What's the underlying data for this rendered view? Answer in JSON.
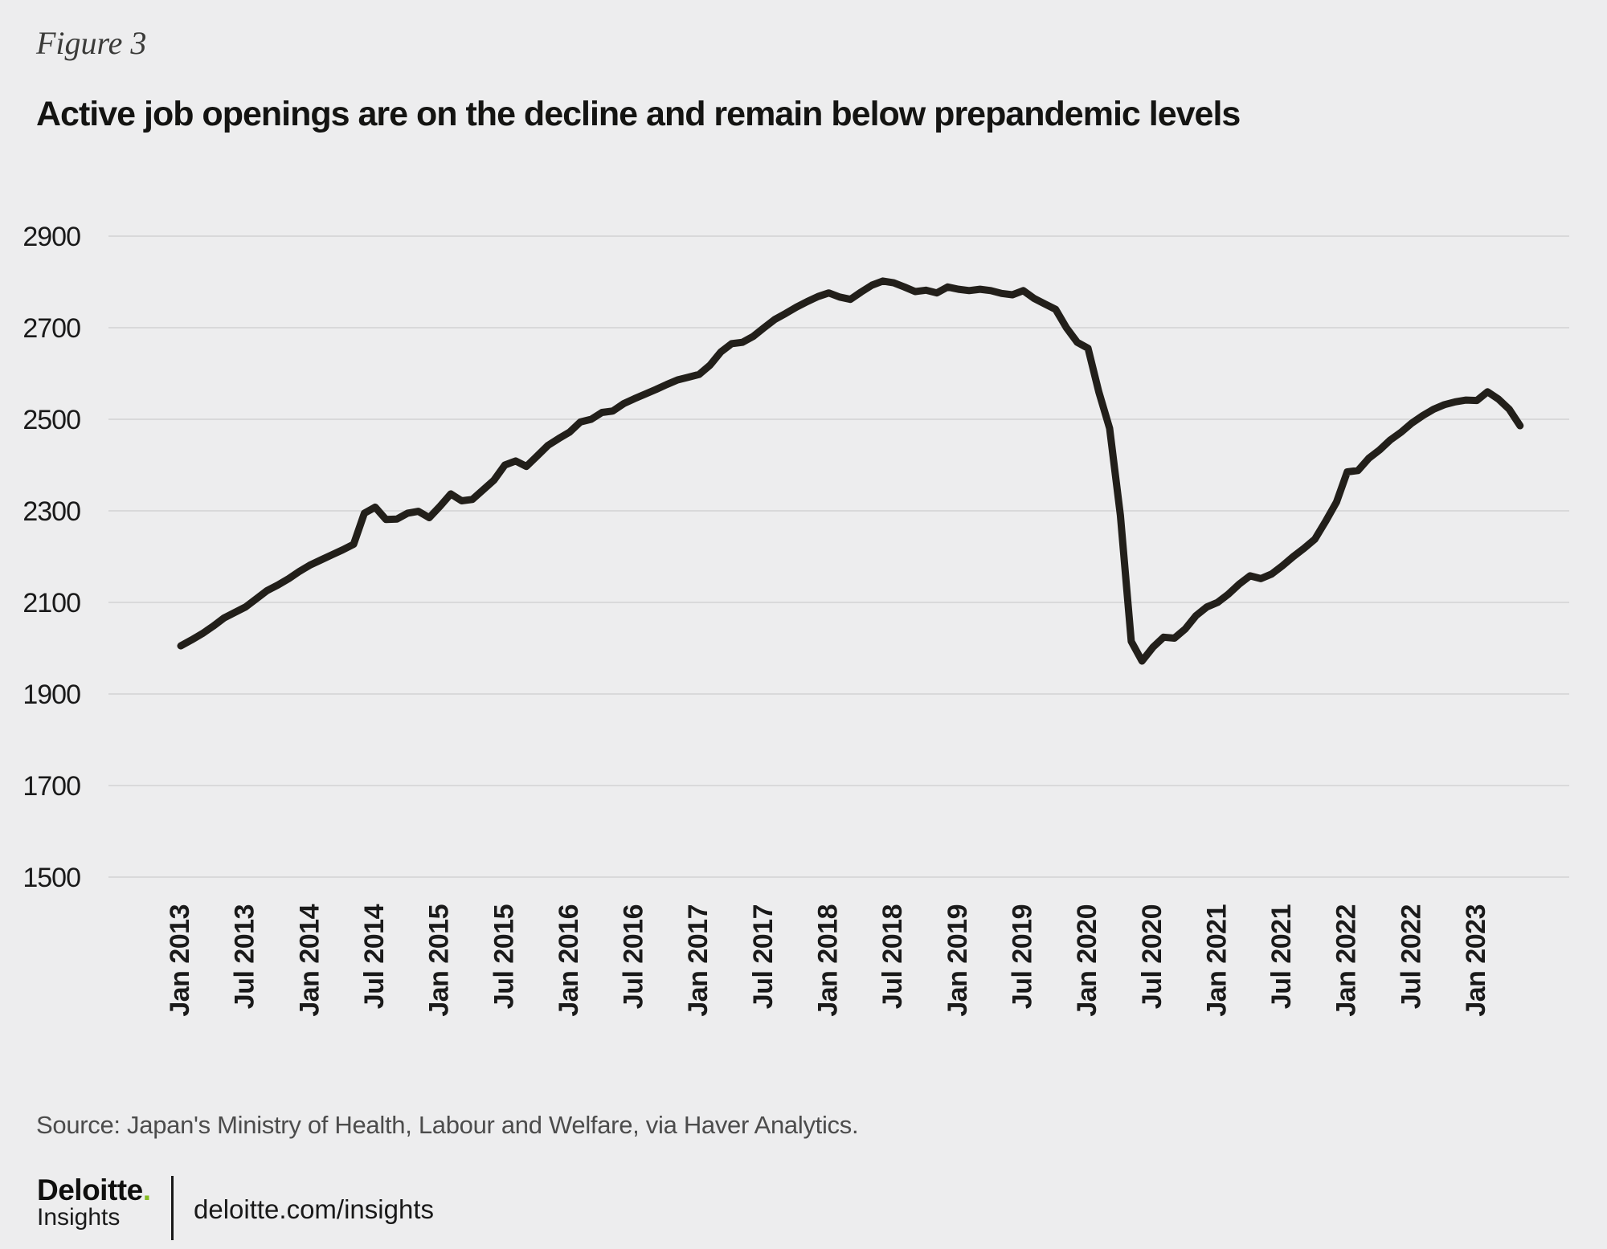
{
  "figure_label": "Figure 3",
  "title": "Active job openings are on the decline and remain below prepandemic levels",
  "source": "Source: Japan's Ministry of Health, Labour and Welfare, via Haver Analytics.",
  "footer": {
    "brand": "Deloitte",
    "brand_dot": ".",
    "brand_sub": "Insights",
    "url": "deloitte.com/insights"
  },
  "colors": {
    "background": "#EDEDEE",
    "line": "#221F1A",
    "gridline": "#D9D9DA",
    "text": "#1A1A1A",
    "accent_green": "#86BC25"
  },
  "chart_data": {
    "type": "line",
    "title": "Active job openings are on the decline and remain below prepandemic levels",
    "xlabel": "",
    "ylabel": "",
    "ylim": [
      1500,
      2900
    ],
    "grid": "horizontal",
    "legend": "none",
    "y_ticks": [
      2900,
      2700,
      2500,
      2300,
      2100,
      1900,
      1700,
      1500
    ],
    "x_tick_labels": [
      "Jan 2013",
      "Jul 2013",
      "Jan 2014",
      "Jul 2014",
      "Jan 2015",
      "Jul 2015",
      "Jan 2016",
      "Jul 2016",
      "Jan 2017",
      "Jul 2017",
      "Jan 2018",
      "Jul 2018",
      "Jan 2019",
      "Jul 2019",
      "Jan 2020",
      "Jul 2020",
      "Jan 2021",
      "Jul 2021",
      "Jan 2022",
      "Jul 2022",
      "Jan 2023"
    ],
    "x_tick_interval_months": 6,
    "x_frequency": "monthly",
    "x_start_label": "Jan 2013",
    "x_end_label": "May 2023",
    "values": [
      2005,
      2018,
      2032,
      2048,
      2066,
      2078,
      2090,
      2108,
      2126,
      2138,
      2152,
      2168,
      2182,
      2193,
      2204,
      2215,
      2227,
      2295,
      2308,
      2281,
      2282,
      2295,
      2299,
      2285,
      2310,
      2337,
      2322,
      2325,
      2346,
      2367,
      2400,
      2409,
      2397,
      2420,
      2443,
      2458,
      2472,
      2494,
      2500,
      2515,
      2518,
      2534,
      2545,
      2555,
      2565,
      2576,
      2586,
      2592,
      2598,
      2618,
      2647,
      2665,
      2668,
      2681,
      2700,
      2718,
      2731,
      2745,
      2757,
      2768,
      2776,
      2767,
      2762,
      2778,
      2793,
      2802,
      2798,
      2789,
      2779,
      2782,
      2776,
      2789,
      2784,
      2781,
      2784,
      2781,
      2775,
      2772,
      2781,
      2764,
      2752,
      2740,
      2700,
      2668,
      2655,
      2560,
      2480,
      2290,
      2015,
      1972,
      2002,
      2024,
      2022,
      2042,
      2071,
      2090,
      2100,
      2118,
      2140,
      2158,
      2152,
      2162,
      2180,
      2200,
      2218,
      2238,
      2277,
      2319,
      2385,
      2388,
      2415,
      2433,
      2455,
      2472,
      2492,
      2508,
      2522,
      2532,
      2538,
      2542,
      2541,
      2560,
      2544,
      2522,
      2486
    ]
  }
}
